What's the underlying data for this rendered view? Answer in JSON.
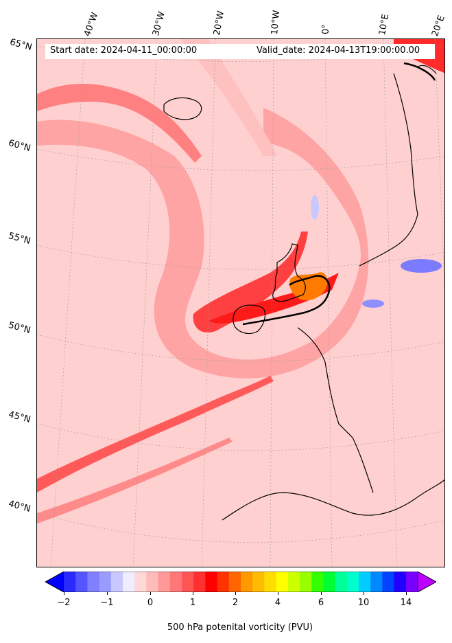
{
  "header": {
    "start_date": "Start date: 2024-04-11_00:00:00",
    "valid_date": "Valid_date: 2024-04-13T19:00:00.00"
  },
  "longitude_labels": [
    "40°W",
    "30°W",
    "20°W",
    "10°W",
    "0°",
    "10°E",
    "20°E"
  ],
  "latitude_labels": [
    "65°N",
    "60°N",
    "55°N",
    "50°N",
    "45°N",
    "40°N"
  ],
  "colorbar": {
    "label": "500 hPa potenital vorticity (PVU)",
    "tick_labels": [
      "−2",
      "−1",
      "0",
      "1",
      "2",
      "4",
      "6",
      "10",
      "14"
    ],
    "colors": [
      "#0000ff",
      "#2a2aff",
      "#5555ff",
      "#7f7fff",
      "#9a9aff",
      "#c8c8ff",
      "#eeeeff",
      "#ffd8d8",
      "#ffbaba",
      "#ff9999",
      "#ff7777",
      "#ff5555",
      "#ff3030",
      "#ff0000",
      "#ff3300",
      "#ff6600",
      "#ff9900",
      "#ffbb00",
      "#ffdd00",
      "#ffff00",
      "#ccff00",
      "#99ff00",
      "#33ff00",
      "#00ff33",
      "#00ff99",
      "#00ffcc",
      "#00ccff",
      "#0088ff",
      "#0044ff",
      "#2200ff",
      "#7700ff",
      "#bb00ff"
    ]
  }
}
